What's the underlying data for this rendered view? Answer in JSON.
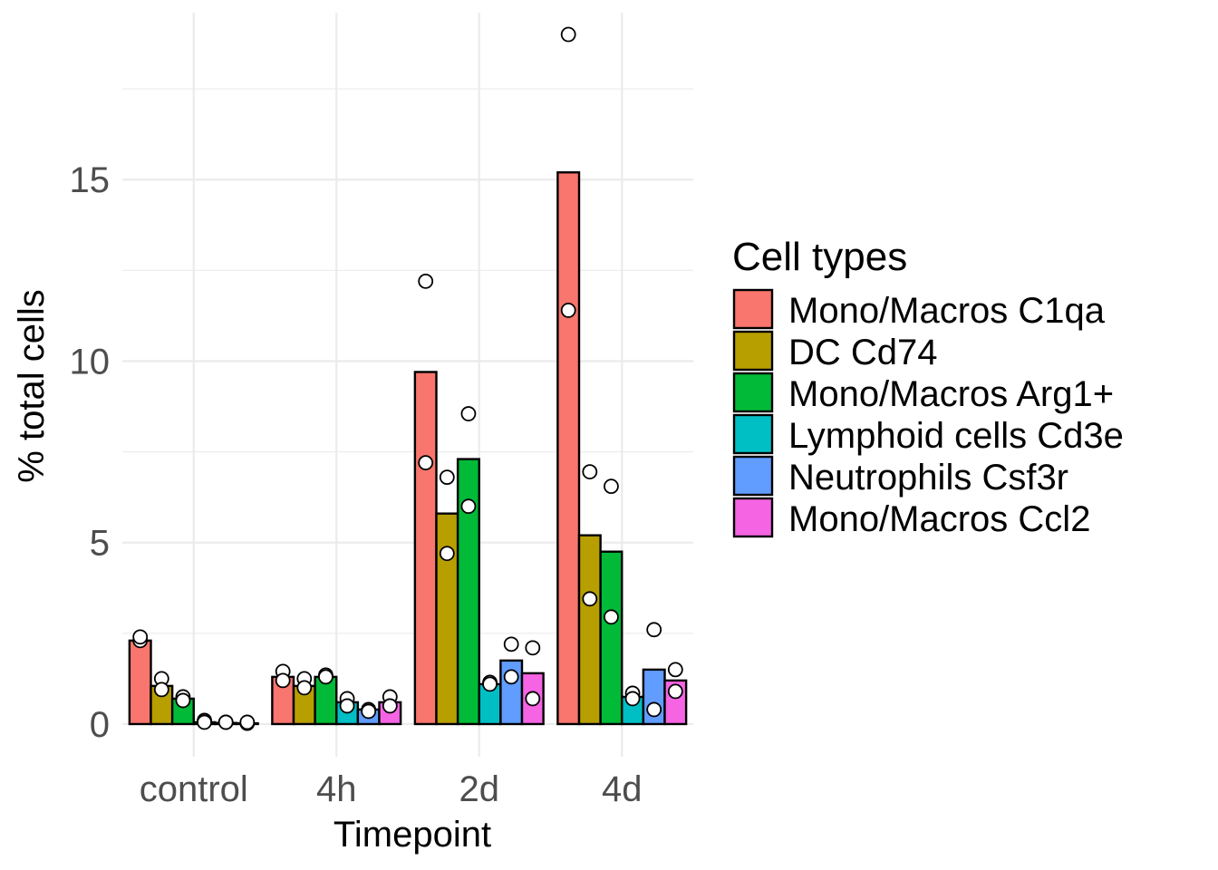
{
  "chart_data": {
    "type": "bar",
    "xlabel": "Timepoint",
    "ylabel": "% total cells",
    "ylim": [
      -0.9,
      19.6
    ],
    "yticks": [
      0,
      5,
      10,
      15
    ],
    "grid": true,
    "legend_position": "right",
    "legend_title": "Cell types",
    "categories": [
      "control",
      "4h",
      "2d",
      "4d"
    ],
    "series": [
      {
        "name": "Mono/Macros C1qa",
        "color": "#F8766D",
        "values": [
          2.3,
          1.3,
          9.7,
          15.2
        ],
        "points": [
          [
            2.3,
            2.4
          ],
          [
            1.45,
            1.2
          ],
          [
            12.2,
            7.2
          ],
          [
            19.0,
            11.4
          ]
        ]
      },
      {
        "name": "DC Cd74",
        "color": "#B79F00",
        "values": [
          1.05,
          1.05,
          5.8,
          5.2
        ],
        "points": [
          [
            1.25,
            0.95
          ],
          [
            1.25,
            1.0
          ],
          [
            6.8,
            4.7
          ],
          [
            6.95,
            3.45
          ]
        ]
      },
      {
        "name": "Mono/Macros Arg1+",
        "color": "#00BA38",
        "values": [
          0.7,
          1.3,
          7.3,
          4.75
        ],
        "points": [
          [
            0.75,
            0.65
          ],
          [
            1.35,
            1.3
          ],
          [
            8.55,
            6.0
          ],
          [
            6.55,
            2.95
          ]
        ]
      },
      {
        "name": "Lymphoid cells Cd3e",
        "color": "#00BFC4",
        "values": [
          0.05,
          0.6,
          1.1,
          0.75
        ],
        "points": [
          [
            0.1,
            0.05
          ],
          [
            0.7,
            0.5
          ],
          [
            1.15,
            1.1
          ],
          [
            0.85,
            0.7
          ]
        ]
      },
      {
        "name": "Neutrophils Csf3r",
        "color": "#619CFF",
        "values": [
          0.03,
          0.4,
          1.75,
          1.5
        ],
        "points": [
          [
            0.05,
            0.05
          ],
          [
            0.4,
            0.35
          ],
          [
            2.2,
            1.3
          ],
          [
            2.6,
            0.4
          ]
        ]
      },
      {
        "name": "Mono/Macros Ccl2",
        "color": "#F564E3",
        "values": [
          0.02,
          0.6,
          1.4,
          1.2
        ],
        "points": [
          [
            0.02,
            0.05
          ],
          [
            0.75,
            0.5
          ],
          [
            2.1,
            0.7
          ],
          [
            1.5,
            0.9
          ]
        ]
      }
    ]
  }
}
